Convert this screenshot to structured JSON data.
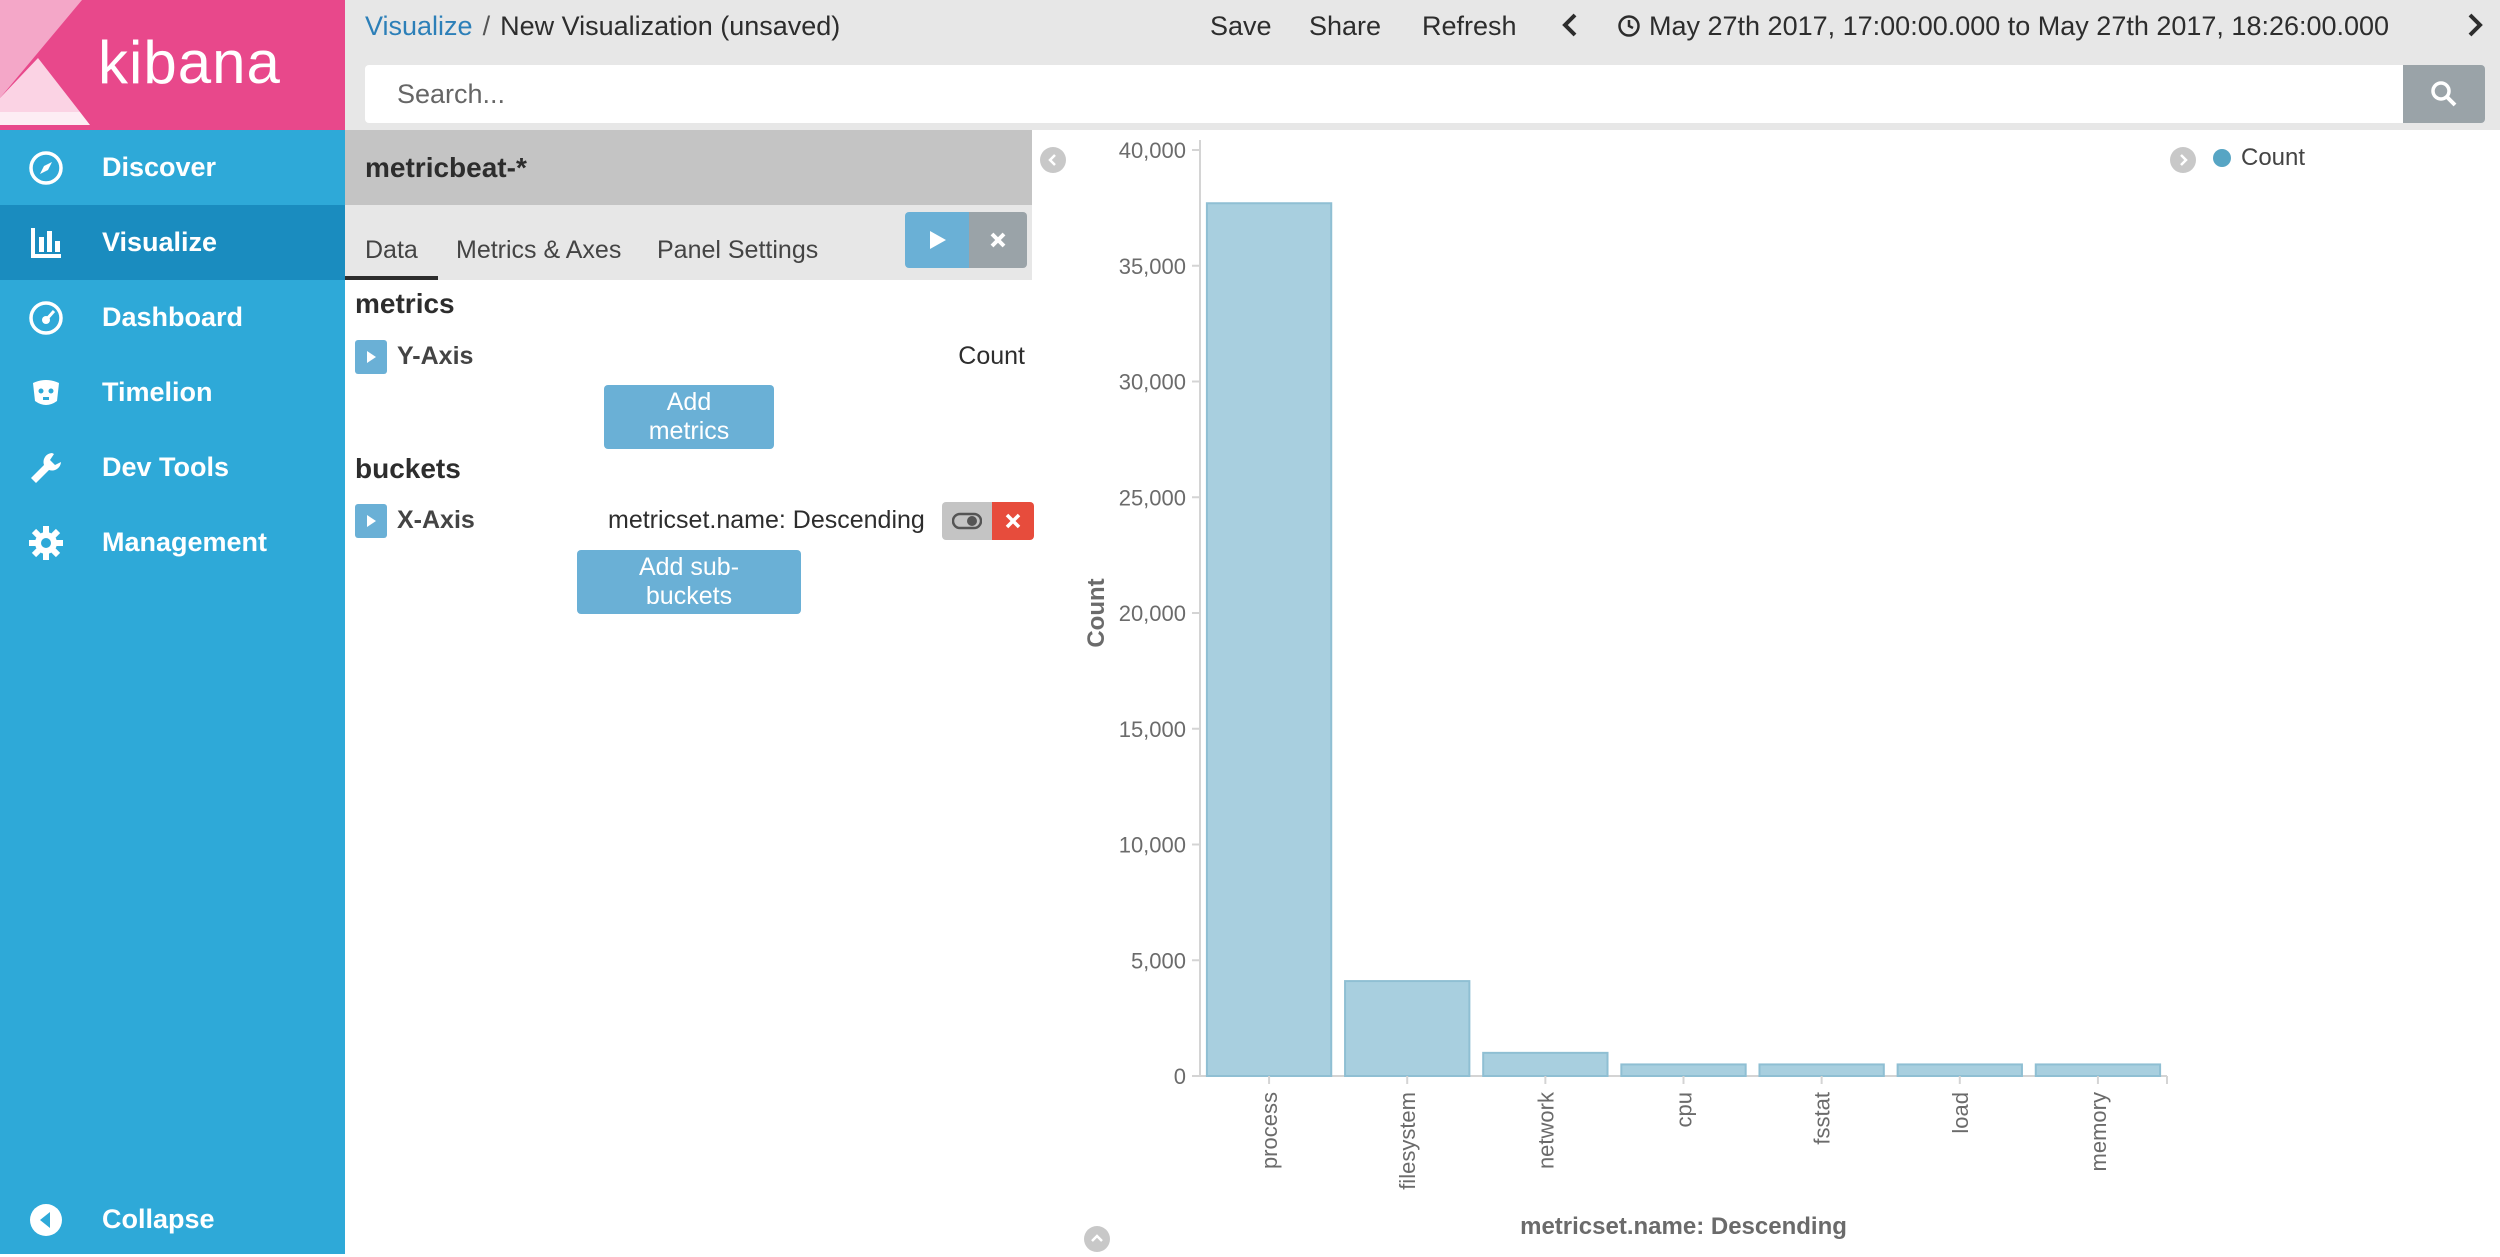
{
  "app": {
    "name": "kibana"
  },
  "colors": {
    "sidebar": "#2ea9d8",
    "sidebar_active": "#1a8cbf",
    "logo_bg": "#e8488b",
    "bar_fill": "#a8cfdf",
    "bar_stroke": "#8fbfd3",
    "legend_dot": "#57a5c4",
    "button": "#6ab0d6",
    "danger": "#e74c3c"
  },
  "sidebar": {
    "items": [
      {
        "label": "Discover",
        "icon": "compass-icon"
      },
      {
        "label": "Visualize",
        "icon": "bar-chart-icon",
        "active": true
      },
      {
        "label": "Dashboard",
        "icon": "dashboard-icon"
      },
      {
        "label": "Timelion",
        "icon": "timelion-icon"
      },
      {
        "label": "Dev Tools",
        "icon": "wrench-icon"
      },
      {
        "label": "Management",
        "icon": "gear-icon"
      }
    ],
    "collapse_label": "Collapse"
  },
  "topbar": {
    "breadcrumb_root": "Visualize",
    "breadcrumb_separator": "/",
    "breadcrumb_current": "New Visualization (unsaved)",
    "save_label": "Save",
    "share_label": "Share",
    "refresh_label": "Refresh",
    "time_range": "May 27th 2017, 17:00:00.000 to May 27th 2017, 18:26:00.000",
    "search_placeholder": "Search..."
  },
  "editor": {
    "index_pattern": "metricbeat-*",
    "tabs": [
      "Data",
      "Metrics & Axes",
      "Panel Settings"
    ],
    "metrics_title": "metrics",
    "metric": {
      "name": "Y-Axis",
      "description": "Count"
    },
    "add_metrics_label": "Add metrics",
    "buckets_title": "buckets",
    "bucket": {
      "name": "X-Axis",
      "description": "metricset.name: Descending"
    },
    "add_buckets_label": "Add sub-buckets"
  },
  "chart_data": {
    "type": "bar",
    "categories": [
      "process",
      "filesystem",
      "network",
      "cpu",
      "fsstat",
      "load",
      "memory"
    ],
    "values": [
      37700,
      4100,
      1000,
      500,
      500,
      500,
      500
    ],
    "ylim": [
      0,
      40000
    ],
    "yticks": [
      0,
      5000,
      10000,
      15000,
      20000,
      25000,
      30000,
      35000,
      40000
    ],
    "ytick_labels": [
      "0",
      "5,000",
      "10,000",
      "15,000",
      "20,000",
      "25,000",
      "30,000",
      "35,000",
      "40,000"
    ],
    "ylabel": "Count",
    "xlabel": "metricset.name: Descending",
    "legend": [
      "Count"
    ],
    "legend_position": "top-right"
  }
}
